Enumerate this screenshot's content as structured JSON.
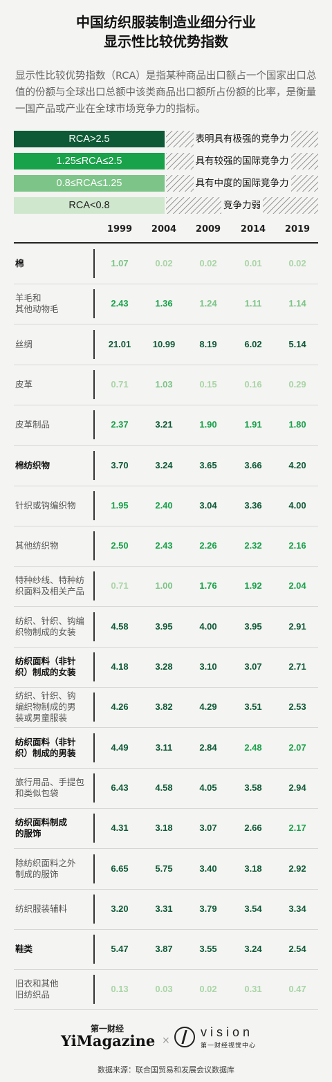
{
  "title": {
    "line1": "中国纺织服装制造业细分行业",
    "line2": "显示性比较优势指数"
  },
  "description": "显示性比较优势指数（RCA）是指某种商品出口额占一个国家出口总值的份额与全球出口总额中该类商品出口额所占份额的比率，是衡量一国产品或产业在全球市场竞争力的指标。",
  "legend": [
    {
      "range": "RCA>2.5",
      "meaning": "表明具有极强的竞争力",
      "color": "#0e5a36",
      "text_color": "#ffffff"
    },
    {
      "range": "1.25≤RCA≤2.5",
      "meaning": "具有较强的国际竞争力",
      "color": "#19a24a",
      "text_color": "#ffffff"
    },
    {
      "range": "0.8≤RCA≤1.25",
      "meaning": "具有中度的国际竞争力",
      "color": "#7cc487",
      "text_color": "#ffffff"
    },
    {
      "range": "RCA<0.8",
      "meaning": "竞争力弱",
      "color": "#cfe7cd",
      "text_color": "#222222"
    }
  ],
  "value_colors": {
    "very_strong": "#0e5a36",
    "strong": "#19a24a",
    "moderate": "#7cc487",
    "weak": "#a9d5a6"
  },
  "chart_data": {
    "type": "table",
    "columns": [
      "1999",
      "2004",
      "2009",
      "2014",
      "2019"
    ],
    "rows": [
      {
        "label": "棉",
        "bold": true,
        "values": [
          "1.07",
          "0.02",
          "0.02",
          "0.01",
          "0.02"
        ]
      },
      {
        "label": "羊毛和\n其他动物毛",
        "bold": false,
        "values": [
          "2.43",
          "1.36",
          "1.24",
          "1.11",
          "1.14"
        ]
      },
      {
        "label": "丝绸",
        "bold": false,
        "values": [
          "21.01",
          "10.99",
          "8.19",
          "6.02",
          "5.14"
        ]
      },
      {
        "label": "皮革",
        "bold": false,
        "values": [
          "0.71",
          "1.03",
          "0.15",
          "0.16",
          "0.29"
        ]
      },
      {
        "label": "皮革制品",
        "bold": false,
        "values": [
          "2.37",
          "3.21",
          "1.90",
          "1.91",
          "1.80"
        ]
      },
      {
        "label": "棉纺织物",
        "bold": true,
        "values": [
          "3.70",
          "3.24",
          "3.65",
          "3.66",
          "4.20"
        ]
      },
      {
        "label": "针织或钩编织物",
        "bold": false,
        "values": [
          "1.95",
          "2.40",
          "3.04",
          "3.36",
          "4.00"
        ]
      },
      {
        "label": "其他纺织物",
        "bold": false,
        "values": [
          "2.50",
          "2.43",
          "2.26",
          "2.32",
          "2.16"
        ]
      },
      {
        "label": "特种纱线、特种纺\n织面料及相关产品",
        "bold": false,
        "values": [
          "0.71",
          "1.00",
          "1.76",
          "1.92",
          "2.04"
        ]
      },
      {
        "label": "纺织、针织、钩编\n织物制成的女装",
        "bold": false,
        "values": [
          "4.58",
          "3.95",
          "4.00",
          "3.95",
          "2.91"
        ]
      },
      {
        "label": "纺织面料（非针\n织）制成的女装",
        "bold": true,
        "values": [
          "4.18",
          "3.28",
          "3.10",
          "3.07",
          "2.71"
        ]
      },
      {
        "label": "纺织、针织、钩\n编织物制成的男\n装或男童服装",
        "bold": false,
        "values": [
          "4.26",
          "3.82",
          "4.29",
          "3.51",
          "2.53"
        ]
      },
      {
        "label": "纺织面料（非针\n织）制成的男装",
        "bold": true,
        "values": [
          "4.49",
          "3.11",
          "2.84",
          "2.48",
          "2.07"
        ]
      },
      {
        "label": "旅行用品、手提包\n和类似包袋",
        "bold": false,
        "values": [
          "6.43",
          "4.58",
          "4.05",
          "3.58",
          "2.94"
        ]
      },
      {
        "label": "纺织面料制成\n的服饰",
        "bold": true,
        "values": [
          "4.31",
          "3.18",
          "3.07",
          "2.66",
          "2.17"
        ]
      },
      {
        "label": "除纺织面料之外\n制成的服饰",
        "bold": false,
        "values": [
          "6.65",
          "5.75",
          "3.40",
          "3.18",
          "2.92"
        ]
      },
      {
        "label": "纺织服装辅料",
        "bold": false,
        "values": [
          "3.20",
          "3.31",
          "3.79",
          "3.54",
          "3.34"
        ]
      },
      {
        "label": "鞋类",
        "bold": true,
        "values": [
          "5.47",
          "3.87",
          "3.55",
          "3.24",
          "2.54"
        ]
      },
      {
        "label": "旧衣和其他\n旧纺织品",
        "bold": false,
        "values": [
          "0.13",
          "0.03",
          "0.02",
          "0.31",
          "0.47"
        ]
      }
    ]
  },
  "logos": {
    "yimagazine_top": "第一财经",
    "yimagazine": "YiMagazine",
    "separator": "×",
    "vision": "vision",
    "vision_sub": "第一财经视觉中心"
  },
  "source": "数据来源：联合国贸易和发展会议数据库"
}
